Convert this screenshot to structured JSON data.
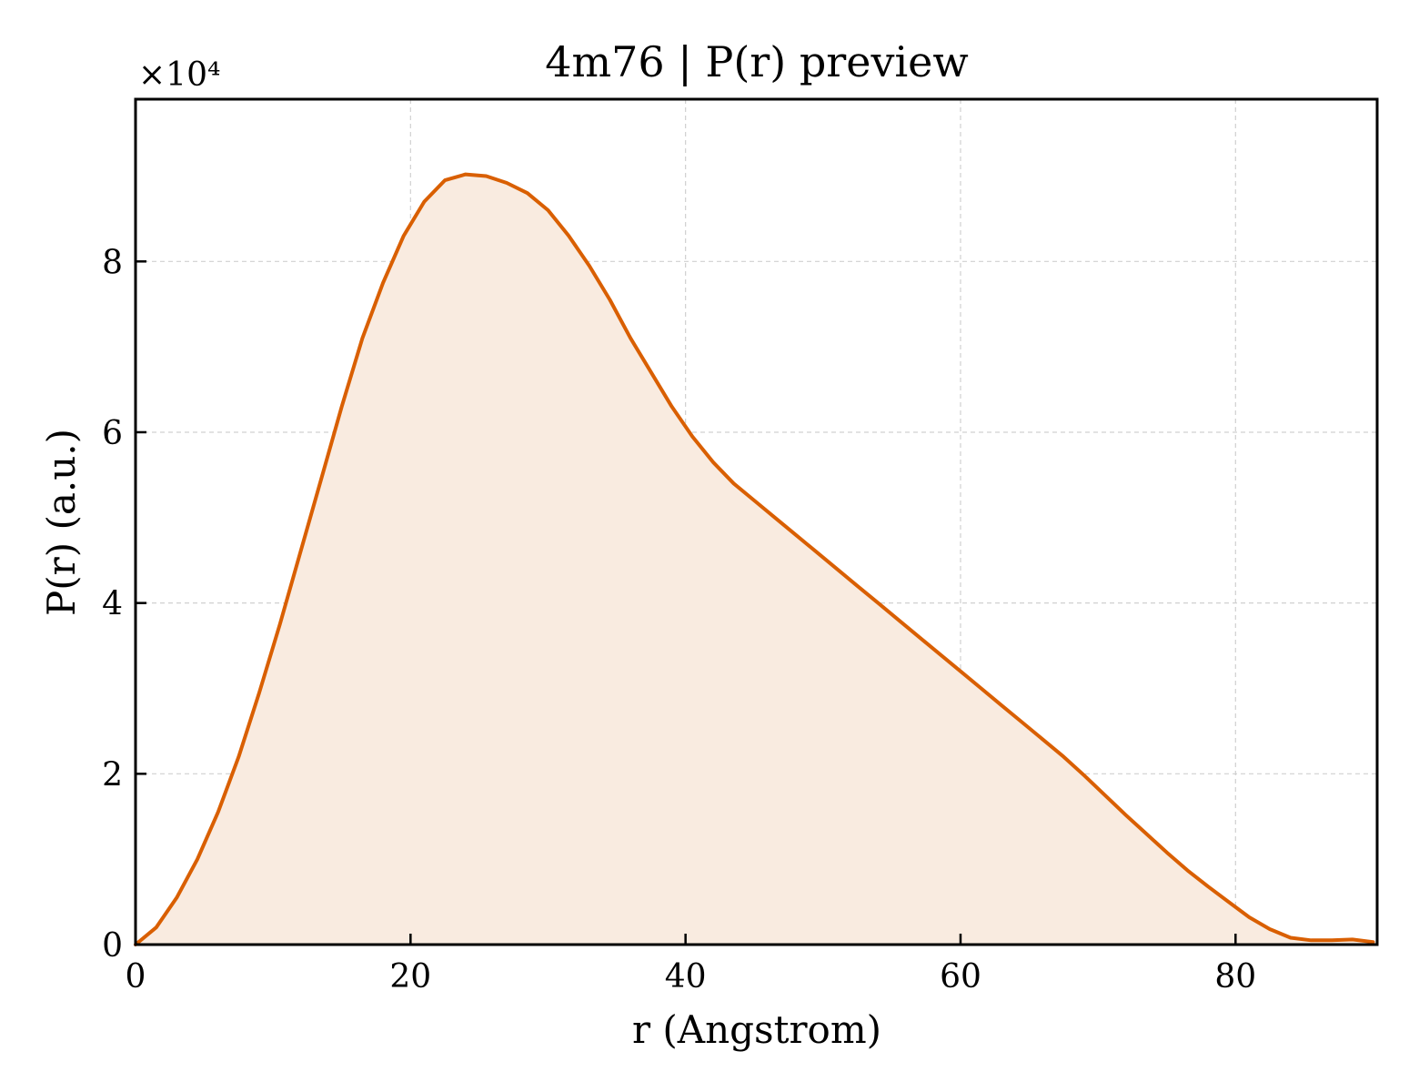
{
  "chart_data": {
    "type": "area",
    "title": "4m76 | P(r) preview",
    "xlabel": "r (Angstrom)",
    "ylabel": "P(r) (a.u.)",
    "y_multiplier_label": "×10⁴",
    "xlim": [
      0,
      90.3
    ],
    "ylim": [
      0,
      9.9
    ],
    "xticks": [
      0,
      20,
      40,
      60,
      80
    ],
    "yticks": [
      0,
      2,
      4,
      6,
      8
    ],
    "grid": true,
    "legend": "none",
    "colors": {
      "line": "#d95f02",
      "fill": "#f9ebe0"
    },
    "series": [
      {
        "x": [
          0,
          1.5,
          3.0,
          4.5,
          6.0,
          7.5,
          9.0,
          10.5,
          12.0,
          13.5,
          15.0,
          16.5,
          18.0,
          19.5,
          21.0,
          22.5,
          24.0,
          25.5,
          27.0,
          28.5,
          30.0,
          31.5,
          33.0,
          34.5,
          36.0,
          37.5,
          39.0,
          40.5,
          42.0,
          43.5,
          45.0,
          46.5,
          48.0,
          49.5,
          51.0,
          52.5,
          54.0,
          55.5,
          57.0,
          58.5,
          60.0,
          61.5,
          63.0,
          64.5,
          66.0,
          67.5,
          69.0,
          70.5,
          72.0,
          73.5,
          75.0,
          76.5,
          78.0,
          79.5,
          81.0,
          82.5,
          84.0,
          85.5,
          87.0,
          88.5,
          90.0
        ],
        "values": [
          0,
          0.2,
          0.55,
          1.0,
          1.55,
          2.2,
          2.95,
          3.75,
          4.6,
          5.45,
          6.3,
          7.1,
          7.75,
          8.3,
          8.7,
          8.95,
          9.02,
          9.0,
          8.92,
          8.8,
          8.6,
          8.3,
          7.95,
          7.55,
          7.1,
          6.7,
          6.3,
          5.95,
          5.65,
          5.4,
          5.2,
          5.0,
          4.8,
          4.6,
          4.4,
          4.2,
          4.0,
          3.8,
          3.6,
          3.4,
          3.2,
          3.0,
          2.8,
          2.6,
          2.4,
          2.2,
          1.98,
          1.75,
          1.52,
          1.3,
          1.08,
          0.87,
          0.68,
          0.5,
          0.32,
          0.18,
          0.08,
          0.05,
          0.05,
          0.06,
          0.03
        ]
      }
    ]
  }
}
